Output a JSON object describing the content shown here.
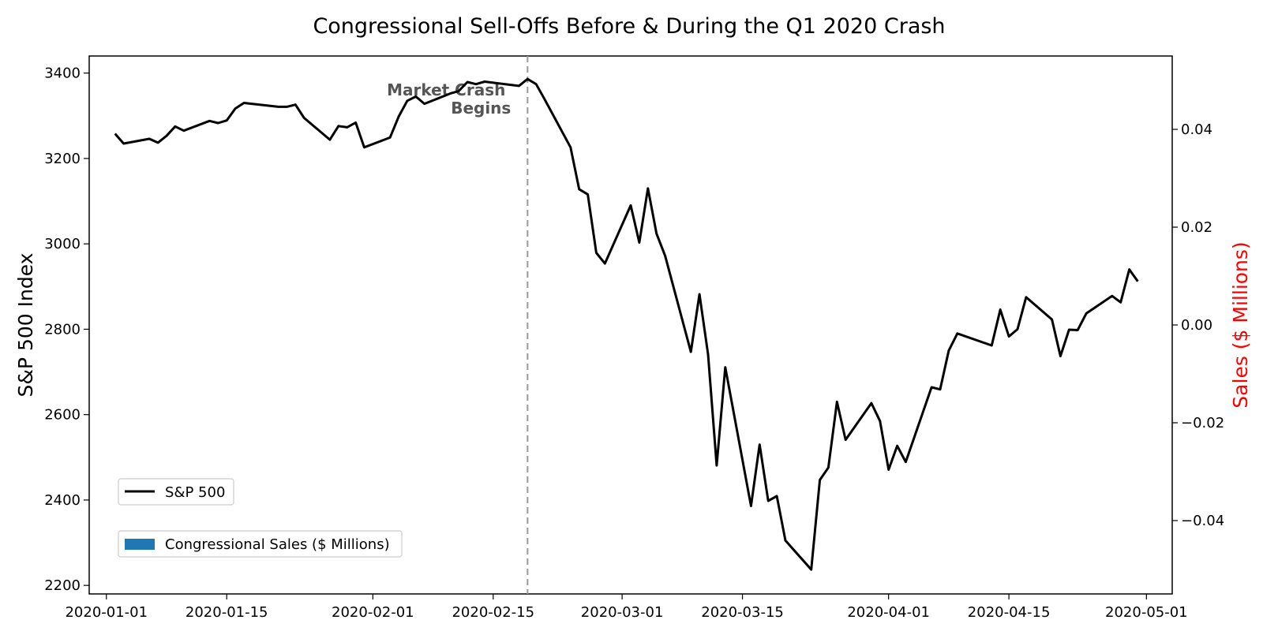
{
  "chart_data": {
    "type": "line",
    "title": "Congressional Sell-Offs Before & During the Q1 2020 Crash",
    "ylabel": "S&P 500 Index",
    "ylabel_right": "Sales ($ Millions)",
    "ylim": [
      2180,
      3440
    ],
    "ylim_right": [
      -0.055,
      0.055
    ],
    "xlim": [
      "2019-12-30",
      "2020-05-04"
    ],
    "x_ticks": [
      "2020-01-01",
      "2020-01-15",
      "2020-02-01",
      "2020-02-15",
      "2020-03-01",
      "2020-03-15",
      "2020-04-01",
      "2020-04-15",
      "2020-05-01"
    ],
    "y_ticks": [
      2200,
      2400,
      2600,
      2800,
      3000,
      3200,
      3400
    ],
    "y_ticks_right": [
      -0.04,
      -0.02,
      0.0,
      0.02,
      0.04
    ],
    "y_tick_labels_right": [
      "−0.04",
      "−0.02",
      "0.00",
      "0.02",
      "0.04"
    ],
    "grid": false,
    "legend_placement": "lower-left",
    "legend": [
      "S&P 500",
      "Congressional Sales ($ Millions)"
    ],
    "annotation": {
      "text_lines": [
        "Market Crash",
        "Begins"
      ],
      "x": "2020-02-19"
    },
    "colors": {
      "line": "#000000",
      "bars": "#1f77b4",
      "ylabel_right": "#ff0000",
      "annotation": "#555555",
      "vline": "#999999"
    },
    "series": [
      {
        "name": "S&P 500",
        "x": [
          "2020-01-02",
          "2020-01-03",
          "2020-01-06",
          "2020-01-07",
          "2020-01-08",
          "2020-01-09",
          "2020-01-10",
          "2020-01-13",
          "2020-01-14",
          "2020-01-15",
          "2020-01-16",
          "2020-01-17",
          "2020-01-21",
          "2020-01-22",
          "2020-01-23",
          "2020-01-24",
          "2020-01-27",
          "2020-01-28",
          "2020-01-29",
          "2020-01-30",
          "2020-01-31",
          "2020-02-03",
          "2020-02-04",
          "2020-02-05",
          "2020-02-06",
          "2020-02-07",
          "2020-02-10",
          "2020-02-11",
          "2020-02-12",
          "2020-02-13",
          "2020-02-14",
          "2020-02-18",
          "2020-02-19",
          "2020-02-20",
          "2020-02-21",
          "2020-02-24",
          "2020-02-25",
          "2020-02-26",
          "2020-02-27",
          "2020-02-28",
          "2020-03-02",
          "2020-03-03",
          "2020-03-04",
          "2020-03-05",
          "2020-03-06",
          "2020-03-09",
          "2020-03-10",
          "2020-03-11",
          "2020-03-12",
          "2020-03-13",
          "2020-03-16",
          "2020-03-17",
          "2020-03-18",
          "2020-03-19",
          "2020-03-20",
          "2020-03-23",
          "2020-03-24",
          "2020-03-25",
          "2020-03-26",
          "2020-03-27",
          "2020-03-30",
          "2020-03-31",
          "2020-04-01",
          "2020-04-02",
          "2020-04-03",
          "2020-04-06",
          "2020-04-07",
          "2020-04-08",
          "2020-04-09",
          "2020-04-13",
          "2020-04-14",
          "2020-04-15",
          "2020-04-16",
          "2020-04-17",
          "2020-04-20",
          "2020-04-21",
          "2020-04-22",
          "2020-04-23",
          "2020-04-24",
          "2020-04-27",
          "2020-04-28",
          "2020-04-29",
          "2020-04-30"
        ],
        "values": [
          3258,
          3235,
          3246,
          3237,
          3253,
          3275,
          3265,
          3288,
          3283,
          3289,
          3317,
          3330,
          3321,
          3321,
          3326,
          3295,
          3244,
          3276,
          3273,
          3284,
          3226,
          3249,
          3298,
          3335,
          3345,
          3328,
          3352,
          3358,
          3379,
          3374,
          3380,
          3370,
          3386,
          3374,
          3338,
          3226,
          3128,
          3116,
          2979,
          2954,
          3090,
          3003,
          3130,
          3024,
          2972,
          2747,
          2882,
          2741,
          2481,
          2711,
          2386,
          2530,
          2398,
          2409,
          2305,
          2237,
          2447,
          2476,
          2630,
          2541,
          2627,
          2585,
          2471,
          2527,
          2489,
          2664,
          2659,
          2750,
          2790,
          2762,
          2846,
          2783,
          2800,
          2875,
          2823,
          2737,
          2799,
          2798,
          2837,
          2878,
          2863,
          2940,
          2912
        ]
      }
    ]
  }
}
